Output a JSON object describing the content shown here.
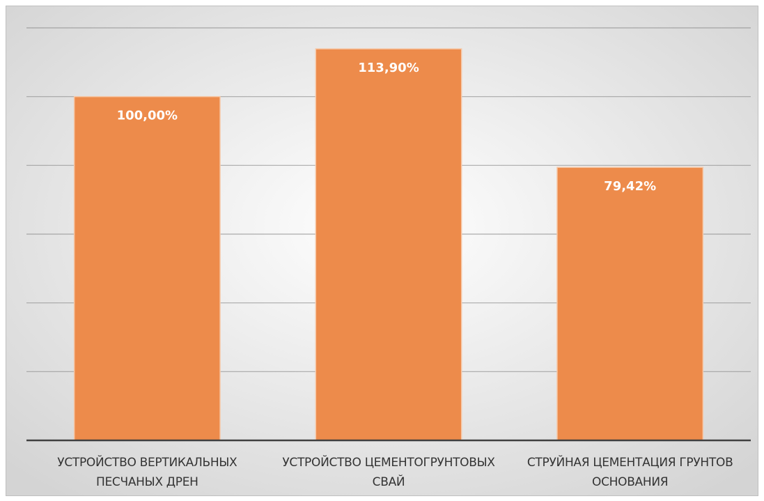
{
  "chart_data": {
    "type": "bar",
    "categories": [
      "УСТРОЙСТВО ВЕРТИКАЛЬНЫХ ПЕСЧАНЫХ ДРЕН",
      "УСТРОЙСТВО ЦЕМЕНТОГРУНТОВЫХ СВАЙ",
      "СТРУЙНАЯ ЦЕМЕНТАЦИЯ ГРУНТОВ ОСНОВАНИЯ"
    ],
    "values": [
      100,
      113.9,
      79.42
    ],
    "value_labels": [
      "100,00%",
      "113,90%",
      "79,42%"
    ],
    "color": "#ed8b4b",
    "ylim": [
      0,
      120
    ],
    "yticks": [
      0,
      20,
      40,
      60,
      80,
      100,
      120
    ],
    "grid": true
  }
}
